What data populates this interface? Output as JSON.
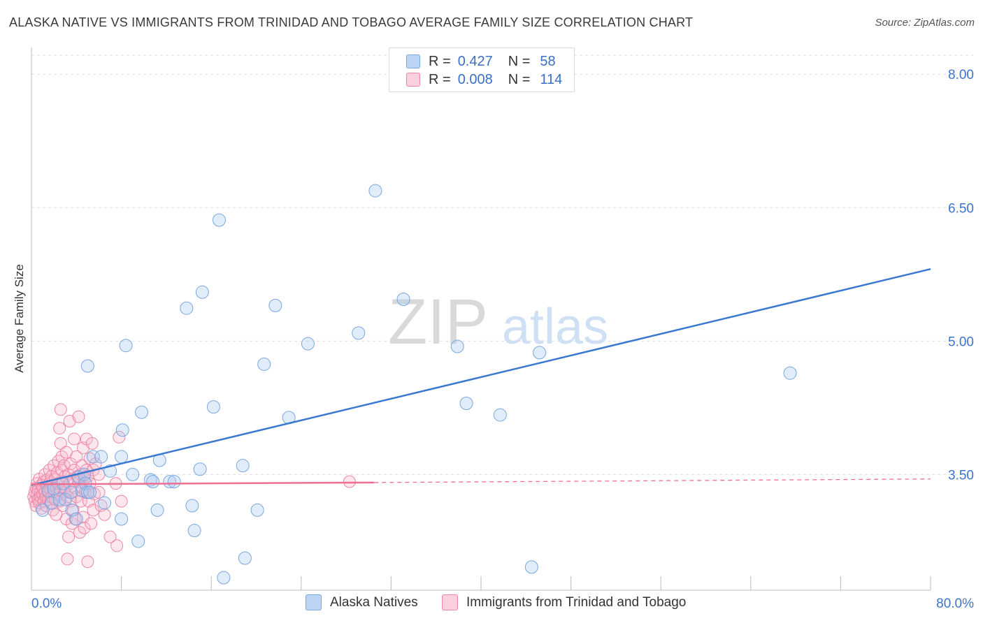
{
  "header": {
    "title": "ALASKA NATIVE VS IMMIGRANTS FROM TRINIDAD AND TOBAGO AVERAGE FAMILY SIZE CORRELATION CHART",
    "source": "Source: ZipAtlas.com"
  },
  "watermark": {
    "zip": "ZIP",
    "atlas": "atlas"
  },
  "legend_top": {
    "rows": [
      {
        "r_label": "R =",
        "r_value": "0.427",
        "n_label": "N =",
        "n_value": "58",
        "color": "#a9c8f0"
      },
      {
        "r_label": "R =",
        "r_value": "0.008",
        "n_label": "N =",
        "n_value": "114",
        "color": "#f7b9cb"
      }
    ]
  },
  "legend_bottom": [
    {
      "label": "Alaska Natives",
      "color": "#a9c8f0"
    },
    {
      "label": "Immigrants from Trinidad and Tobago",
      "color": "#f7b9cb"
    }
  ],
  "colors": {
    "blue_edge": "#7aa6e0",
    "blue_line": "#3a78d0",
    "pink_edge": "#ef86a6",
    "pink_line": "#ef6f93",
    "tick_text": "#3d74c9"
  },
  "chart_data": {
    "type": "scatter",
    "title": "ALASKA NATIVE VS IMMIGRANTS FROM TRINIDAD AND TOBAGO AVERAGE FAMILY SIZE CORRELATION CHART",
    "xlabel": "",
    "ylabel": "Average Family Size",
    "xlim": [
      0,
      80
    ],
    "ylim": [
      2.2,
      8.3
    ],
    "x_tick_labels": [
      "0.0%",
      "80.0%"
    ],
    "y_ticks": [
      3.5,
      5.0,
      6.5,
      8.0
    ],
    "y_tick_labels": [
      "3.50",
      "5.00",
      "6.50",
      "8.00"
    ],
    "grid": "horizontal dashed",
    "series": [
      {
        "name": "Alaska Natives",
        "r": 0.427,
        "n": 58,
        "trend": {
          "x": [
            0,
            80
          ],
          "y": [
            3.38,
            5.81
          ]
        },
        "points": [
          [
            1.0,
            3.1
          ],
          [
            1.5,
            3.32
          ],
          [
            1.8,
            3.18
          ],
          [
            2.0,
            3.34
          ],
          [
            2.5,
            3.22
          ],
          [
            2.8,
            3.4
          ],
          [
            3.0,
            3.22
          ],
          [
            3.5,
            3.3
          ],
          [
            3.6,
            3.1
          ],
          [
            4.0,
            3.0
          ],
          [
            4.2,
            3.47
          ],
          [
            4.5,
            3.32
          ],
          [
            4.7,
            3.5
          ],
          [
            4.8,
            3.4
          ],
          [
            5.0,
            3.3
          ],
          [
            5.0,
            4.72
          ],
          [
            5.5,
            3.7
          ],
          [
            6.2,
            3.7
          ],
          [
            6.5,
            3.18
          ],
          [
            7.0,
            3.54
          ],
          [
            8.0,
            3.0
          ],
          [
            8.1,
            4.0
          ],
          [
            8.0,
            3.7
          ],
          [
            8.4,
            4.95
          ],
          [
            9.0,
            3.5
          ],
          [
            9.5,
            2.75
          ],
          [
            9.8,
            4.2
          ],
          [
            10.6,
            3.44
          ],
          [
            10.8,
            3.42
          ],
          [
            11.2,
            3.1
          ],
          [
            11.4,
            3.66
          ],
          [
            12.3,
            3.42
          ],
          [
            12.7,
            3.42
          ],
          [
            13.8,
            5.37
          ],
          [
            14.3,
            3.15
          ],
          [
            14.5,
            2.87
          ],
          [
            15.0,
            3.56
          ],
          [
            15.2,
            5.55
          ],
          [
            16.2,
            4.26
          ],
          [
            16.7,
            6.36
          ],
          [
            17.1,
            2.34
          ],
          [
            18.8,
            3.6
          ],
          [
            19.0,
            2.56
          ],
          [
            20.1,
            3.1
          ],
          [
            20.7,
            4.74
          ],
          [
            21.7,
            5.4
          ],
          [
            22.9,
            4.14
          ],
          [
            24.6,
            4.97
          ],
          [
            29.1,
            5.09
          ],
          [
            30.6,
            6.69
          ],
          [
            33.1,
            5.47
          ],
          [
            37.9,
            4.94
          ],
          [
            38.7,
            4.3
          ],
          [
            41.7,
            4.17
          ],
          [
            44.5,
            2.46
          ],
          [
            45.2,
            4.87
          ],
          [
            67.5,
            4.64
          ],
          [
            5.2,
            3.3
          ]
        ]
      },
      {
        "name": "Immigrants from Trinidad and Tobago",
        "r": 0.008,
        "n": 114,
        "trend": {
          "x": [
            0,
            30.5
          ],
          "y": [
            3.39,
            3.41
          ]
        },
        "trend_extension": {
          "x": [
            30.5,
            80
          ],
          "y": [
            3.41,
            3.45
          ]
        },
        "points": [
          [
            0.2,
            3.25
          ],
          [
            0.3,
            3.3
          ],
          [
            0.3,
            3.2
          ],
          [
            0.4,
            3.35
          ],
          [
            0.4,
            3.15
          ],
          [
            0.5,
            3.28
          ],
          [
            0.5,
            3.4
          ],
          [
            0.6,
            3.22
          ],
          [
            0.6,
            3.32
          ],
          [
            0.7,
            3.18
          ],
          [
            0.7,
            3.45
          ],
          [
            0.8,
            3.3
          ],
          [
            0.8,
            3.25
          ],
          [
            0.9,
            3.38
          ],
          [
            0.9,
            3.12
          ],
          [
            1.0,
            3.28
          ],
          [
            1.0,
            3.35
          ],
          [
            1.1,
            3.2
          ],
          [
            1.1,
            3.42
          ],
          [
            1.2,
            3.3
          ],
          [
            1.2,
            3.5
          ],
          [
            1.3,
            3.25
          ],
          [
            1.3,
            3.15
          ],
          [
            1.4,
            3.36
          ],
          [
            1.4,
            3.44
          ],
          [
            1.5,
            3.22
          ],
          [
            1.5,
            3.3
          ],
          [
            1.6,
            3.55
          ],
          [
            1.6,
            3.4
          ],
          [
            1.7,
            3.18
          ],
          [
            1.7,
            3.33
          ],
          [
            1.8,
            3.48
          ],
          [
            1.8,
            3.25
          ],
          [
            1.9,
            3.1
          ],
          [
            1.9,
            3.38
          ],
          [
            2.0,
            3.3
          ],
          [
            2.0,
            3.6
          ],
          [
            2.1,
            3.22
          ],
          [
            2.1,
            3.45
          ],
          [
            2.2,
            3.35
          ],
          [
            2.2,
            3.05
          ],
          [
            2.3,
            3.52
          ],
          [
            2.3,
            3.28
          ],
          [
            2.4,
            3.4
          ],
          [
            2.4,
            3.65
          ],
          [
            2.5,
            3.2
          ],
          [
            2.5,
            4.02
          ],
          [
            2.6,
            3.85
          ],
          [
            2.6,
            3.32
          ],
          [
            2.6,
            4.23
          ],
          [
            2.7,
            3.55
          ],
          [
            2.7,
            3.7
          ],
          [
            2.8,
            3.42
          ],
          [
            2.8,
            3.15
          ],
          [
            2.9,
            3.3
          ],
          [
            2.9,
            3.6
          ],
          [
            3.0,
            3.48
          ],
          [
            3.0,
            3.35
          ],
          [
            3.1,
            3.0
          ],
          [
            3.1,
            3.75
          ],
          [
            3.2,
            2.55
          ],
          [
            3.2,
            3.25
          ],
          [
            3.3,
            2.8
          ],
          [
            3.3,
            3.5
          ],
          [
            3.4,
            3.4
          ],
          [
            3.4,
            4.1
          ],
          [
            3.5,
            3.2
          ],
          [
            3.5,
            3.62
          ],
          [
            3.6,
            2.95
          ],
          [
            3.6,
            3.3
          ],
          [
            3.7,
            3.45
          ],
          [
            3.7,
            3.1
          ],
          [
            3.8,
            3.55
          ],
          [
            3.8,
            3.9
          ],
          [
            3.9,
            3.35
          ],
          [
            3.9,
            3.0
          ],
          [
            4.0,
            3.25
          ],
          [
            4.0,
            3.7
          ],
          [
            4.1,
            3.48
          ],
          [
            4.2,
            3.42
          ],
          [
            4.2,
            4.15
          ],
          [
            4.3,
            2.85
          ],
          [
            4.4,
            3.5
          ],
          [
            4.4,
            3.2
          ],
          [
            4.5,
            3.6
          ],
          [
            4.5,
            3.35
          ],
          [
            4.6,
            3.8
          ],
          [
            4.6,
            3.02
          ],
          [
            4.7,
            3.45
          ],
          [
            4.7,
            2.9
          ],
          [
            4.8,
            3.3
          ],
          [
            4.9,
            3.55
          ],
          [
            4.9,
            3.9
          ],
          [
            5.0,
            3.48
          ],
          [
            5.0,
            2.52
          ],
          [
            5.1,
            3.2
          ],
          [
            5.2,
            3.68
          ],
          [
            5.2,
            3.4
          ],
          [
            5.3,
            2.95
          ],
          [
            5.4,
            3.85
          ],
          [
            5.5,
            3.1
          ],
          [
            5.5,
            3.55
          ],
          [
            5.6,
            3.28
          ],
          [
            5.7,
            3.62
          ],
          [
            6.0,
            3.5
          ],
          [
            6.0,
            3.3
          ],
          [
            6.2,
            3.15
          ],
          [
            6.5,
            3.05
          ],
          [
            7.0,
            2.8
          ],
          [
            7.5,
            3.4
          ],
          [
            7.6,
            2.7
          ],
          [
            7.8,
            3.92
          ],
          [
            8.0,
            3.2
          ],
          [
            28.3,
            3.42
          ]
        ]
      }
    ]
  }
}
